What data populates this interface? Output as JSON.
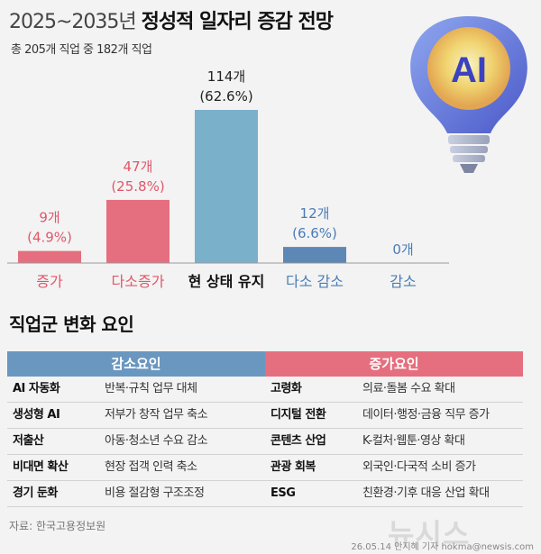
{
  "header": {
    "title_years": "2025~2035년",
    "title_main": "정성적 일자리 증감 전망",
    "subtitle": "총 205개 직업 중 182개 직업"
  },
  "chart_data": {
    "type": "bar",
    "categories": [
      "증가",
      "다소증가",
      "현 상태 유지",
      "다소 감소",
      "감소"
    ],
    "values": [
      9,
      47,
      114,
      12,
      0
    ],
    "count_labels": [
      "9개",
      "47개",
      "114개",
      "12개",
      "0개"
    ],
    "percent_labels": [
      "(4.9%)",
      "(25.8%)",
      "(62.6%)",
      "(6.6%)",
      ""
    ],
    "unit": "개",
    "ylim": [
      0,
      114
    ],
    "colors": [
      "#e56f7e",
      "#e56f7e",
      "#7bb0cb",
      "#5d88b5",
      "#5d88b5"
    ],
    "label_colors": [
      "#e0576a",
      "#e0576a",
      "#222222",
      "#4a7cb5",
      "#4a7cb5"
    ],
    "category_colors": [
      "#e0576a",
      "#e0576a",
      "#111111",
      "#4a7cb5",
      "#4a7cb5"
    ]
  },
  "illustration": {
    "icon": "lightbulb-ai",
    "label": "AI"
  },
  "factors": {
    "section_title": "직업군 변화 요인",
    "decrease": {
      "header": "감소요인",
      "rows": [
        {
          "name": "AI 자동화",
          "desc": "반복·규칙 업무 대체"
        },
        {
          "name": "생성형 AI",
          "desc": "저부가 창작 업무 축소"
        },
        {
          "name": "저출산",
          "desc": "아동·청소년 수요 감소"
        },
        {
          "name": "비대면 확산",
          "desc": "현장 접객 인력 축소"
        },
        {
          "name": "경기 둔화",
          "desc": "비용 절감형 구조조정"
        }
      ]
    },
    "increase": {
      "header": "증가요인",
      "rows": [
        {
          "name": "고령화",
          "desc": "의료·돌봄 수요 확대"
        },
        {
          "name": "디지털 전환",
          "desc": "데이터·행정·금융 직무 증가"
        },
        {
          "name": "콘텐츠 산업",
          "desc": "K-컬처·웹툰·영상 확대"
        },
        {
          "name": "관광 회복",
          "desc": "외국인·다국적 소비 증가"
        },
        {
          "name": "ESG",
          "desc": "친환경·기후 대응 산업 확대"
        }
      ]
    }
  },
  "footer": {
    "source": "자료: 한국고용정보원",
    "watermark": "뉴시스",
    "credit": "26.05.14 안지혜 기자 hokma@newsis.com"
  },
  "colors": {
    "decrease_accent": "#6a97bf",
    "increase_accent": "#e56f7e",
    "background": "#f3f3f3"
  }
}
